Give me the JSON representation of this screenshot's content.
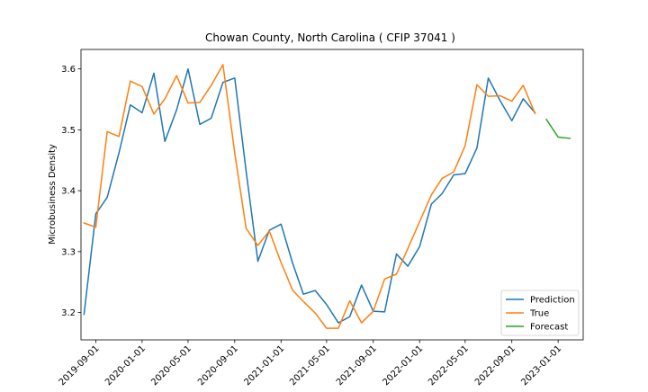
{
  "chart_data": {
    "type": "line",
    "title": "Chowan County, North Carolina ( CFIP 37041 )",
    "xlabel": "",
    "ylabel": "Microbusiness Density",
    "xlim": [
      "2019-07-24",
      "2023-03-08"
    ],
    "ylim": [
      3.155,
      3.632
    ],
    "x_ticks": [
      "2019-09-01",
      "2020-01-01",
      "2020-05-01",
      "2020-09-01",
      "2021-01-01",
      "2021-05-01",
      "2021-09-01",
      "2022-01-01",
      "2022-05-01",
      "2022-09-01",
      "2023-01-01"
    ],
    "y_ticks": [
      3.2,
      3.3,
      3.4,
      3.5,
      3.6
    ],
    "grid": false,
    "legend_position": "lower right",
    "series": [
      {
        "name": "Prediction",
        "color": "#1f77b4",
        "points": [
          [
            "2019-08-01",
            3.197
          ],
          [
            "2019-09-01",
            3.362
          ],
          [
            "2019-10-01",
            3.389
          ],
          [
            "2019-11-01",
            3.462
          ],
          [
            "2019-12-01",
            3.541
          ],
          [
            "2020-01-01",
            3.528
          ],
          [
            "2020-02-01",
            3.593
          ],
          [
            "2020-03-01",
            3.481
          ],
          [
            "2020-04-01",
            3.533
          ],
          [
            "2020-05-01",
            3.6
          ],
          [
            "2020-06-01",
            3.509
          ],
          [
            "2020-07-01",
            3.519
          ],
          [
            "2020-08-01",
            3.578
          ],
          [
            "2020-09-01",
            3.585
          ],
          [
            "2020-10-01",
            3.432
          ],
          [
            "2020-11-01",
            3.284
          ],
          [
            "2020-12-01",
            3.335
          ],
          [
            "2021-01-01",
            3.345
          ],
          [
            "2021-02-01",
            3.28
          ],
          [
            "2021-03-01",
            3.23
          ],
          [
            "2021-04-01",
            3.236
          ],
          [
            "2021-05-01",
            3.213
          ],
          [
            "2021-06-01",
            3.183
          ],
          [
            "2021-07-01",
            3.193
          ],
          [
            "2021-08-01",
            3.245
          ],
          [
            "2021-09-01",
            3.202
          ],
          [
            "2021-10-01",
            3.201
          ],
          [
            "2021-11-01",
            3.296
          ],
          [
            "2021-12-01",
            3.276
          ],
          [
            "2022-01-01",
            3.308
          ],
          [
            "2022-02-01",
            3.378
          ],
          [
            "2022-03-01",
            3.395
          ],
          [
            "2022-04-01",
            3.426
          ],
          [
            "2022-05-01",
            3.428
          ],
          [
            "2022-06-01",
            3.47
          ],
          [
            "2022-07-01",
            3.585
          ],
          [
            "2022-08-01",
            3.548
          ],
          [
            "2022-09-01",
            3.515
          ],
          [
            "2022-10-01",
            3.551
          ],
          [
            "2022-11-01",
            3.528
          ]
        ]
      },
      {
        "name": "True",
        "color": "#ff7f0e",
        "points": [
          [
            "2019-08-01",
            3.347
          ],
          [
            "2019-09-01",
            3.34
          ],
          [
            "2019-10-01",
            3.497
          ],
          [
            "2019-11-01",
            3.489
          ],
          [
            "2019-12-01",
            3.58
          ],
          [
            "2020-01-01",
            3.571
          ],
          [
            "2020-02-01",
            3.526
          ],
          [
            "2020-03-01",
            3.551
          ],
          [
            "2020-04-01",
            3.589
          ],
          [
            "2020-05-01",
            3.544
          ],
          [
            "2020-06-01",
            3.545
          ],
          [
            "2020-07-01",
            3.573
          ],
          [
            "2020-08-01",
            3.607
          ],
          [
            "2020-09-01",
            3.462
          ],
          [
            "2020-10-01",
            3.338
          ],
          [
            "2020-11-01",
            3.31
          ],
          [
            "2020-12-01",
            3.334
          ],
          [
            "2021-01-01",
            3.282
          ],
          [
            "2021-02-01",
            3.236
          ],
          [
            "2021-03-01",
            3.218
          ],
          [
            "2021-04-01",
            3.199
          ],
          [
            "2021-05-01",
            3.174
          ],
          [
            "2021-06-01",
            3.174
          ],
          [
            "2021-07-01",
            3.219
          ],
          [
            "2021-08-01",
            3.183
          ],
          [
            "2021-09-01",
            3.202
          ],
          [
            "2021-10-01",
            3.255
          ],
          [
            "2021-11-01",
            3.263
          ],
          [
            "2021-12-01",
            3.305
          ],
          [
            "2022-01-01",
            3.349
          ],
          [
            "2022-02-01",
            3.393
          ],
          [
            "2022-03-01",
            3.42
          ],
          [
            "2022-04-01",
            3.431
          ],
          [
            "2022-05-01",
            3.474
          ],
          [
            "2022-06-01",
            3.574
          ],
          [
            "2022-07-01",
            3.555
          ],
          [
            "2022-08-01",
            3.556
          ],
          [
            "2022-09-01",
            3.547
          ],
          [
            "2022-10-01",
            3.573
          ],
          [
            "2022-11-01",
            3.527
          ]
        ]
      },
      {
        "name": "Forecast",
        "color": "#2ca02c",
        "points": [
          [
            "2022-12-01",
            3.517
          ],
          [
            "2023-01-01",
            3.488
          ],
          [
            "2023-02-01",
            3.486
          ]
        ]
      }
    ]
  }
}
